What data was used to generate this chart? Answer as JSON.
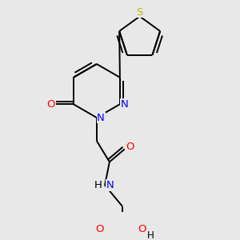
{
  "background_color": "#e8e8e8",
  "bond_color": "#000000",
  "atom_colors": {
    "O": "#ff0000",
    "N": "#0000ff",
    "S": "#bbbb00",
    "C": "#000000",
    "H": "#000000"
  },
  "figsize": [
    3.0,
    3.0
  ],
  "dpi": 100,
  "lw": 1.4,
  "fontsize": 9.5
}
